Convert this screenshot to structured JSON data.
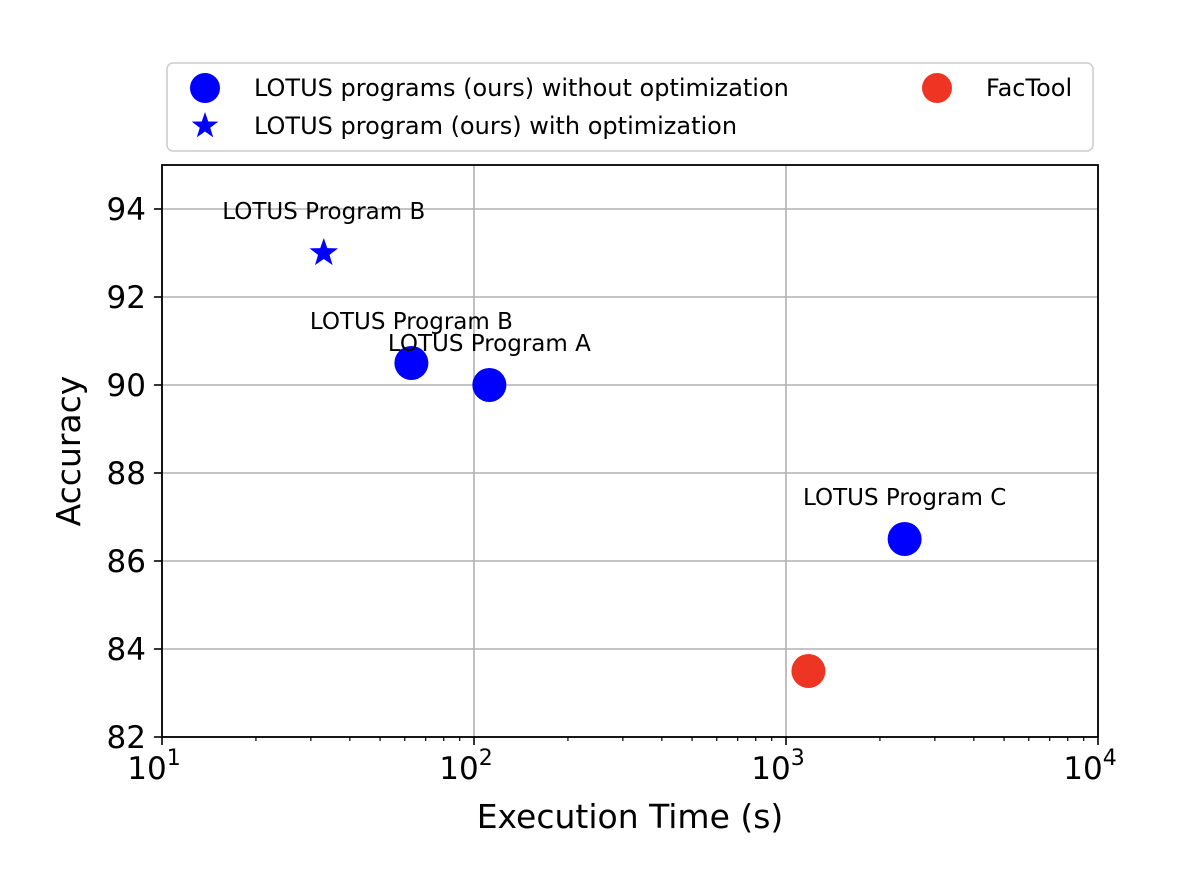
{
  "chart_data": {
    "type": "scatter",
    "xlabel": "Execution Time (s)",
    "ylabel": "Accuracy",
    "xscale": "log",
    "xlim": [
      10,
      10000
    ],
    "ylim": [
      82,
      95
    ],
    "xticks": [
      {
        "value": 10,
        "base": "10",
        "exp": "1"
      },
      {
        "value": 100,
        "base": "10",
        "exp": "2"
      },
      {
        "value": 1000,
        "base": "10",
        "exp": "3"
      },
      {
        "value": 10000,
        "base": "10",
        "exp": "4"
      }
    ],
    "yticks": [
      82,
      84,
      86,
      88,
      90,
      92,
      94
    ],
    "grid": true,
    "legend_position": "top, above plot",
    "series": [
      {
        "name": "LOTUS programs (ours) without optimization",
        "marker": "circle",
        "color": "#0000ff",
        "points": [
          {
            "x": 63,
            "y": 90.5,
            "label": "LOTUS Program B"
          },
          {
            "x": 112,
            "y": 90.0,
            "label": "LOTUS Program A"
          },
          {
            "x": 2400,
            "y": 86.5,
            "label": "LOTUS Program C"
          }
        ]
      },
      {
        "name": "LOTUS program (ours) with optimization",
        "marker": "star",
        "color": "#0000ff",
        "points": [
          {
            "x": 33,
            "y": 93.0,
            "label": "LOTUS Program B"
          }
        ]
      },
      {
        "name": "FacTool",
        "marker": "circle",
        "color": "#ee3524",
        "points": [
          {
            "x": 1180,
            "y": 83.5,
            "label": ""
          }
        ]
      }
    ]
  }
}
